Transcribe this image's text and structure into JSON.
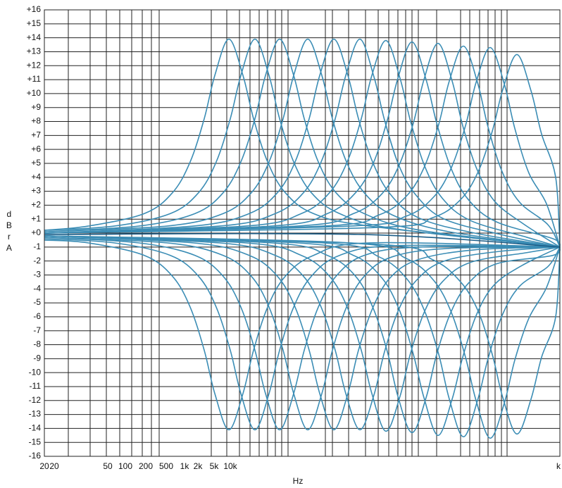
{
  "chart_data": {
    "type": "line",
    "x_label": "Hz",
    "y_label": "dBrA",
    "color": "#3b8db5",
    "xlim": [
      0,
      732
    ],
    "ylim": [
      -16,
      16
    ],
    "xticks": [
      {
        "value": 0,
        "label": "20"
      },
      {
        "value": 14,
        "label": "20"
      },
      {
        "value": 90,
        "label": "50"
      },
      {
        "value": 115,
        "label": "100"
      },
      {
        "value": 144,
        "label": "200"
      },
      {
        "value": 173,
        "label": "500"
      },
      {
        "value": 199,
        "label": "1k"
      },
      {
        "value": 218,
        "label": "2k"
      },
      {
        "value": 241,
        "label": "5k"
      },
      {
        "value": 264,
        "label": "10k"
      },
      {
        "value": 730,
        "label": "k"
      }
    ],
    "xgrid": [
      0,
      34,
      65,
      88,
      107,
      124,
      139,
      152,
      163,
      237,
      259,
      277,
      292,
      305,
      317,
      328,
      337,
      346,
      399,
      409,
      432,
      456,
      474,
      489,
      502,
      513,
      522,
      531,
      557,
      591,
      604,
      618,
      630,
      640,
      649,
      657,
      732
    ],
    "yticks": [
      {
        "value": -16,
        "label": "-16"
      },
      {
        "value": -15,
        "label": "-15"
      },
      {
        "value": -14,
        "label": "-14"
      },
      {
        "value": -13,
        "label": "-13"
      },
      {
        "value": -12,
        "label": "-12"
      },
      {
        "value": -11,
        "label": "-11"
      },
      {
        "value": -10,
        "label": "-10"
      },
      {
        "value": -9,
        "label": "-9"
      },
      {
        "value": -8,
        "label": "-8"
      },
      {
        "value": -7,
        "label": "-7"
      },
      {
        "value": -6,
        "label": "-6"
      },
      {
        "value": -5,
        "label": "-5"
      },
      {
        "value": -4,
        "label": "-4"
      },
      {
        "value": -3,
        "label": "-3"
      },
      {
        "value": -2,
        "label": "-2"
      },
      {
        "value": -1,
        "label": "-1"
      },
      {
        "value": 0,
        "label": "+0"
      },
      {
        "value": 1,
        "label": "+1"
      },
      {
        "value": 2,
        "label": "+2"
      },
      {
        "value": 3,
        "label": "+3"
      },
      {
        "value": 4,
        "label": "+4"
      },
      {
        "value": 5,
        "label": "+5"
      },
      {
        "value": 6,
        "label": "+6"
      },
      {
        "value": 7,
        "label": "+7"
      },
      {
        "value": 8,
        "label": "+8"
      },
      {
        "value": 9,
        "label": "+9"
      },
      {
        "value": 10,
        "label": "+10"
      },
      {
        "value": 11,
        "label": "+11"
      },
      {
        "value": 12,
        "label": "+12"
      },
      {
        "value": 13,
        "label": "+13"
      },
      {
        "value": 14,
        "label": "+14"
      },
      {
        "value": 15,
        "label": "+15"
      },
      {
        "value": 16,
        "label": "+16"
      }
    ],
    "grid": true,
    "series": [
      {
        "x": [
          0,
          62,
          142,
          182,
          207,
          227,
          242,
          262,
          282,
          297,
          317,
          342,
          382,
          462,
          732
        ],
        "values": [
          0.2,
          0.5,
          1.4,
          2.9,
          5.1,
          8.2,
          11.3,
          13.9,
          11.3,
          8.2,
          5.1,
          2.9,
          1.4,
          0.5,
          -1
        ]
      },
      {
        "x": [
          0,
          62,
          142,
          182,
          207,
          227,
          242,
          262,
          282,
          297,
          317,
          342,
          382,
          462,
          732
        ],
        "values": [
          -0.5,
          -0.7,
          -1.6,
          -3.1,
          -5.3,
          -8.4,
          -11.5,
          -14.1,
          -11.5,
          -8.4,
          -5.3,
          -3.1,
          -1.6,
          -0.7,
          -1
        ]
      },
      {
        "x": [
          0,
          99,
          179,
          219,
          244,
          264,
          279,
          299,
          319,
          334,
          354,
          379,
          419,
          499,
          732
        ],
        "values": [
          0.2,
          0.5,
          1.4,
          2.9,
          5.1,
          8.2,
          11.3,
          13.9,
          11.3,
          8.2,
          5.1,
          2.9,
          1.4,
          0.3,
          -1
        ]
      },
      {
        "x": [
          0,
          99,
          179,
          219,
          244,
          264,
          279,
          299,
          319,
          334,
          354,
          379,
          419,
          499,
          732
        ],
        "values": [
          -0.4,
          -0.7,
          -1.6,
          -3.1,
          -5.3,
          -8.4,
          -11.5,
          -14.1,
          -11.5,
          -8.4,
          -5.3,
          -3.1,
          -1.6,
          -0.9,
          -1
        ]
      },
      {
        "x": [
          0,
          134,
          214,
          254,
          279,
          299,
          314,
          334,
          354,
          369,
          389,
          414,
          454,
          534,
          732
        ],
        "values": [
          0.1,
          0.5,
          1.4,
          2.9,
          5.1,
          8.2,
          11.3,
          13.9,
          11.3,
          8.2,
          5.1,
          2.9,
          1.4,
          0.2,
          -1
        ]
      },
      {
        "x": [
          0,
          134,
          214,
          254,
          279,
          299,
          314,
          334,
          354,
          369,
          389,
          414,
          454,
          534,
          732
        ],
        "values": [
          -0.3,
          -0.7,
          -1.6,
          -3.1,
          -5.3,
          -8.4,
          -11.5,
          -14.1,
          -11.5,
          -8.4,
          -5.3,
          -3.1,
          -1.6,
          -1.0,
          -1
        ]
      },
      {
        "x": [
          0,
          174,
          254,
          294,
          319,
          339,
          354,
          374,
          394,
          409,
          429,
          454,
          494,
          574,
          732
        ],
        "values": [
          0.1,
          0.5,
          1.4,
          2.9,
          5.1,
          8.2,
          11.3,
          13.9,
          11.3,
          8.2,
          5.1,
          2.9,
          1.3,
          0.1,
          -1
        ]
      },
      {
        "x": [
          0,
          174,
          254,
          294,
          319,
          339,
          354,
          374,
          394,
          409,
          429,
          454,
          494,
          574,
          732
        ],
        "values": [
          -0.3,
          -0.7,
          -1.6,
          -3.1,
          -5.3,
          -8.4,
          -11.5,
          -14.1,
          -11.5,
          -8.4,
          -5.3,
          -3.1,
          -1.7,
          -1.1,
          -1
        ]
      },
      {
        "x": [
          0,
          211,
          291,
          331,
          356,
          376,
          391,
          411,
          431,
          446,
          466,
          491,
          531,
          611,
          732
        ],
        "values": [
          0.0,
          0.5,
          1.4,
          2.9,
          5.1,
          8.2,
          11.3,
          13.9,
          11.3,
          8.2,
          5.1,
          2.8,
          1.1,
          0.0,
          -1
        ]
      },
      {
        "x": [
          0,
          211,
          291,
          331,
          356,
          376,
          391,
          411,
          431,
          446,
          466,
          491,
          531,
          611,
          732
        ],
        "values": [
          -0.2,
          -0.7,
          -1.6,
          -3.1,
          -5.3,
          -8.4,
          -11.5,
          -14.1,
          -11.5,
          -8.4,
          -5.4,
          -3.2,
          -1.9,
          -1.2,
          -1
        ]
      },
      {
        "x": [
          0,
          248,
          328,
          368,
          393,
          413,
          428,
          448,
          468,
          483,
          503,
          528,
          568,
          648,
          732
        ],
        "values": [
          0.0,
          0.5,
          1.4,
          2.9,
          5.1,
          8.2,
          11.3,
          13.9,
          11.2,
          8.1,
          4.9,
          2.7,
          1.0,
          -0.1,
          -1
        ]
      },
      {
        "x": [
          0,
          248,
          328,
          368,
          393,
          413,
          428,
          448,
          468,
          483,
          503,
          528,
          568,
          648,
          732
        ],
        "values": [
          -0.2,
          -0.7,
          -1.6,
          -3.1,
          -5.3,
          -8.4,
          -11.5,
          -14.1,
          -11.6,
          -8.5,
          -5.5,
          -3.4,
          -2.0,
          -1.3,
          -1
        ]
      },
      {
        "x": [
          0,
          285,
          365,
          405,
          430,
          450,
          465,
          485,
          505,
          520,
          540,
          565,
          605,
          685,
          732
        ],
        "values": [
          0.0,
          0.5,
          1.4,
          2.9,
          5.1,
          8.2,
          11.3,
          13.8,
          11.1,
          8.0,
          4.8,
          2.5,
          0.9,
          -0.3,
          -1
        ]
      },
      {
        "x": [
          0,
          285,
          365,
          405,
          430,
          450,
          465,
          485,
          505,
          520,
          540,
          565,
          605,
          685,
          732
        ],
        "values": [
          -0.2,
          -0.7,
          -1.6,
          -3.1,
          -5.3,
          -8.4,
          -11.5,
          -14.2,
          -11.7,
          -8.6,
          -5.6,
          -3.5,
          -2.1,
          -1.4,
          -1
        ]
      },
      {
        "x": [
          0,
          322,
          402,
          442,
          467,
          487,
          502,
          522,
          542,
          557,
          577,
          602,
          642,
          722,
          732
        ],
        "values": [
          0.0,
          0.5,
          1.4,
          2.9,
          5.0,
          8.1,
          11.1,
          13.7,
          11.0,
          7.9,
          4.7,
          2.4,
          0.8,
          -0.4,
          -1
        ]
      },
      {
        "x": [
          0,
          322,
          402,
          442,
          467,
          487,
          502,
          522,
          542,
          557,
          577,
          602,
          642,
          722,
          732
        ],
        "values": [
          -0.2,
          -0.7,
          -1.6,
          -3.1,
          -5.4,
          -8.5,
          -11.7,
          -14.3,
          -11.8,
          -8.7,
          -5.7,
          -3.6,
          -2.2,
          -1.6,
          -1
        ]
      },
      {
        "x": [
          0,
          359,
          439,
          479,
          504,
          524,
          539,
          559,
          579,
          594,
          614,
          639,
          679,
          732
        ],
        "values": [
          0.0,
          0.5,
          1.4,
          2.8,
          4.9,
          7.9,
          11.0,
          13.6,
          10.9,
          7.7,
          4.6,
          2.3,
          0.7,
          -1
        ]
      },
      {
        "x": [
          0,
          359,
          439,
          479,
          504,
          524,
          539,
          559,
          579,
          594,
          614,
          639,
          679,
          732
        ],
        "values": [
          -0.2,
          -0.7,
          -1.6,
          -3.2,
          -5.5,
          -8.7,
          -11.8,
          -14.5,
          -11.9,
          -8.9,
          -5.8,
          -3.7,
          -2.3,
          -1
        ]
      },
      {
        "x": [
          0,
          395,
          475,
          515,
          540,
          560,
          575,
          595,
          615,
          630,
          650,
          675,
          715,
          732
        ],
        "values": [
          0.0,
          0.5,
          1.3,
          2.7,
          4.8,
          7.8,
          10.9,
          13.4,
          10.8,
          7.6,
          4.4,
          2.2,
          0.6,
          -1
        ]
      },
      {
        "x": [
          0,
          395,
          475,
          515,
          540,
          560,
          575,
          595,
          615,
          630,
          650,
          675,
          715,
          732
        ],
        "values": [
          -0.2,
          -0.7,
          -1.7,
          -3.3,
          -5.6,
          -8.7,
          -11.9,
          -14.6,
          -12.0,
          -9.0,
          -5.9,
          -3.8,
          -2.4,
          -1
        ]
      },
      {
        "x": [
          0,
          433,
          513,
          553,
          578,
          598,
          613,
          633,
          653,
          668,
          688,
          713,
          732
        ],
        "values": [
          0.0,
          0.5,
          1.2,
          2.6,
          4.7,
          7.7,
          10.8,
          13.3,
          10.7,
          7.5,
          4.3,
          2.1,
          -1
        ]
      },
      {
        "x": [
          0,
          433,
          513,
          553,
          578,
          598,
          613,
          633,
          653,
          668,
          688,
          713,
          732
        ],
        "values": [
          -0.2,
          -0.7,
          -1.8,
          -3.4,
          -5.7,
          -8.9,
          -12.0,
          -14.7,
          -12.2,
          -9.1,
          -6.1,
          -3.9,
          -1
        ]
      },
      {
        "x": [
          0,
          471,
          551,
          591,
          616,
          636,
          651,
          671,
          691,
          706,
          726,
          732
        ],
        "values": [
          0.0,
          0.4,
          1.1,
          2.4,
          4.4,
          7.3,
          10.3,
          12.8,
          10.2,
          7.1,
          4.0,
          -1
        ]
      },
      {
        "x": [
          0,
          471,
          551,
          591,
          616,
          636,
          651,
          671,
          691,
          706,
          726,
          732
        ],
        "values": [
          -0.2,
          -0.8,
          -1.9,
          -3.5,
          -5.6,
          -8.7,
          -11.8,
          -14.4,
          -11.9,
          -8.9,
          -6.0,
          -1
        ]
      },
      {
        "x": [
          0,
          450,
          732
        ],
        "values": [
          -0.1,
          -0.1,
          -1
        ],
        "color": "#1a5d88"
      }
    ]
  }
}
